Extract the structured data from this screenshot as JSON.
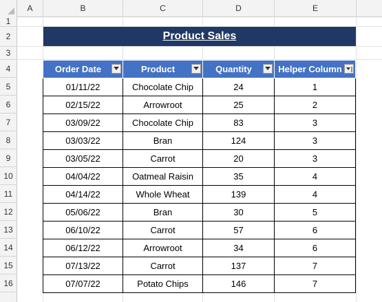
{
  "columns": [
    "A",
    "B",
    "C",
    "D",
    "E"
  ],
  "rows": [
    "1",
    "2",
    "3",
    "4",
    "5",
    "6",
    "7",
    "8",
    "9",
    "10",
    "11",
    "12",
    "13",
    "14",
    "15",
    "16"
  ],
  "title": "Product Sales",
  "table": {
    "headers": [
      "Order Date",
      "Product",
      "Quantity",
      "Helper Column"
    ],
    "rows": [
      [
        "01/11/22",
        "Chocolate Chip",
        "24",
        "1"
      ],
      [
        "02/15/22",
        "Arrowroot",
        "25",
        "2"
      ],
      [
        "03/09/22",
        "Chocolate Chip",
        "83",
        "3"
      ],
      [
        "03/03/22",
        "Bran",
        "124",
        "3"
      ],
      [
        "03/05/22",
        "Carrot",
        "20",
        "3"
      ],
      [
        "04/04/22",
        "Oatmeal Raisin",
        "35",
        "4"
      ],
      [
        "04/14/22",
        "Whole Wheat",
        "139",
        "4"
      ],
      [
        "05/06/22",
        "Bran",
        "30",
        "5"
      ],
      [
        "06/10/22",
        "Carrot",
        "57",
        "6"
      ],
      [
        "06/12/22",
        "Arrowroot",
        "34",
        "6"
      ],
      [
        "07/13/22",
        "Carrot",
        "137",
        "7"
      ],
      [
        "07/07/22",
        "Potato Chips",
        "146",
        "7"
      ]
    ]
  },
  "colors": {
    "title_bg": "#203864",
    "header_bg": "#4472c4"
  }
}
